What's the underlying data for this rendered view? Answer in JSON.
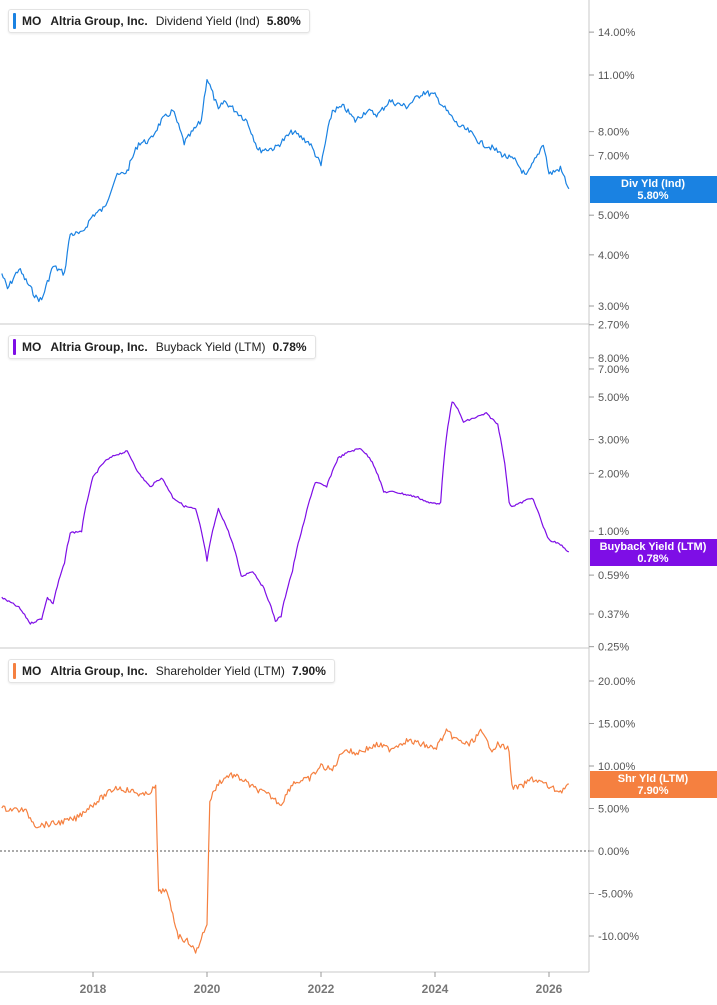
{
  "x_axis": {
    "ticks": [
      "2018",
      "2020",
      "2022",
      "2024",
      "2026"
    ]
  },
  "panels": [
    {
      "ticker": "MO",
      "company": "Altria Group, Inc.",
      "metric": "Dividend Yield (Ind)",
      "value": "5.80%",
      "tag_name": "Div Yld (Ind)",
      "tag_value": "5.80%",
      "color": "#1a82e2",
      "scale": "log",
      "y_ticks": [
        "14.00%",
        "11.00%",
        "8.00%",
        "7.00%",
        "5.00%",
        "4.00%",
        "3.00%",
        "2.70%"
      ]
    },
    {
      "ticker": "MO",
      "company": "Altria Group, Inc.",
      "metric": "Buyback Yield (LTM)",
      "value": "0.78%",
      "tag_name": "Buyback Yield (LTM)",
      "tag_value": "0.78%",
      "color": "#7e0ee6",
      "scale": "log",
      "y_ticks": [
        "8.00%",
        "7.00%",
        "5.00%",
        "3.00%",
        "2.00%",
        "1.00%",
        "0.59%",
        "0.37%",
        "0.25%"
      ]
    },
    {
      "ticker": "MO",
      "company": "Altria Group, Inc.",
      "metric": "Shareholder Yield (LTM)",
      "value": "7.90%",
      "tag_name": "Shr Yld (LTM)",
      "tag_value": "7.90%",
      "color": "#f58040",
      "scale": "linear",
      "y_ticks": [
        "20.00%",
        "15.00%",
        "10.00%",
        "5.00%",
        "0.00%",
        "-5.00%",
        "-10.00%"
      ]
    }
  ],
  "chart_data": [
    {
      "type": "line",
      "title": "MO Altria Group, Inc. Dividend Yield (Ind) 5.80%",
      "series": [
        {
          "name": "Dividend Yield (Ind)",
          "x": [
            2016.4,
            2016.5,
            2016.7,
            2016.8,
            2017.0,
            2017.1,
            2017.3,
            2017.5,
            2017.6,
            2017.8,
            2018.0,
            2018.2,
            2018.4,
            2018.6,
            2018.8,
            2019.0,
            2019.2,
            2019.4,
            2019.6,
            2019.9,
            2020.0,
            2020.2,
            2020.3,
            2020.5,
            2020.7,
            2020.9,
            2021.2,
            2021.5,
            2021.8,
            2022.0,
            2022.2,
            2022.4,
            2022.6,
            2022.8,
            2023.0,
            2023.2,
            2023.5,
            2023.8,
            2024.0,
            2024.2,
            2024.4,
            2024.6,
            2024.8,
            2025.0,
            2025.2,
            2025.4,
            2025.6,
            2025.8,
            2025.9,
            2026.0,
            2026.2,
            2026.35
          ],
          "values": [
            3.6,
            3.3,
            3.7,
            3.5,
            3.15,
            3.1,
            3.75,
            3.6,
            4.5,
            4.5,
            5.0,
            5.2,
            6.2,
            6.4,
            7.5,
            7.6,
            8.5,
            9.0,
            7.5,
            8.5,
            10.8,
            9.0,
            9.5,
            9.0,
            8.5,
            7.2,
            7.3,
            8.0,
            7.5,
            6.6,
            9.0,
            9.2,
            8.5,
            9.0,
            8.8,
            9.5,
            9.2,
            10.0,
            9.8,
            9.0,
            8.3,
            8.0,
            7.5,
            7.3,
            7.0,
            6.8,
            6.2,
            7.0,
            7.5,
            6.3,
            6.5,
            5.8
          ]
        }
      ]
    },
    {
      "type": "line",
      "title": "MO Altria Group, Inc. Buyback Yield (LTM) 0.78%",
      "series": [
        {
          "name": "Buyback Yield (LTM)",
          "x": [
            2016.4,
            2016.7,
            2016.9,
            2017.1,
            2017.2,
            2017.3,
            2017.5,
            2017.6,
            2017.8,
            2018.0,
            2018.2,
            2018.4,
            2018.6,
            2018.8,
            2019.0,
            2019.2,
            2019.4,
            2019.6,
            2019.8,
            2020.0,
            2020.2,
            2020.4,
            2020.6,
            2020.8,
            2021.0,
            2021.2,
            2021.3,
            2021.5,
            2021.7,
            2021.9,
            2022.1,
            2022.3,
            2022.5,
            2022.7,
            2022.9,
            2023.1,
            2023.3,
            2023.5,
            2023.7,
            2023.9,
            2024.1,
            2024.3,
            2024.35,
            2024.5,
            2024.7,
            2024.9,
            2025.1,
            2025.3,
            2025.35,
            2025.5,
            2025.7,
            2025.9,
            2026.0,
            2026.2,
            2026.35
          ],
          "values": [
            0.45,
            0.4,
            0.33,
            0.35,
            0.45,
            0.42,
            0.68,
            0.98,
            1.0,
            1.9,
            2.3,
            2.5,
            2.6,
            2.0,
            1.7,
            1.9,
            1.5,
            1.35,
            1.3,
            0.7,
            1.3,
            0.95,
            0.58,
            0.62,
            0.5,
            0.34,
            0.36,
            0.62,
            1.1,
            1.8,
            1.7,
            2.4,
            2.6,
            2.7,
            2.3,
            1.6,
            1.6,
            1.55,
            1.5,
            1.4,
            1.4,
            4.7,
            4.6,
            3.7,
            3.9,
            4.1,
            3.6,
            1.4,
            1.35,
            1.4,
            1.5,
            1.05,
            0.9,
            0.85,
            0.78
          ]
        }
      ]
    },
    {
      "type": "line",
      "title": "MO Altria Group, Inc. Shareholder Yield (LTM) 7.90%",
      "series": [
        {
          "name": "Shareholder Yield (LTM)",
          "x": [
            2016.4,
            2016.8,
            2017.0,
            2017.3,
            2017.5,
            2017.7,
            2017.9,
            2018.2,
            2018.4,
            2018.7,
            2018.9,
            2019.1,
            2019.15,
            2019.25,
            2019.3,
            2019.5,
            2019.7,
            2019.8,
            2020.0,
            2020.05,
            2020.2,
            2020.4,
            2020.6,
            2020.8,
            2021.1,
            2021.3,
            2021.5,
            2021.8,
            2022.0,
            2022.2,
            2022.4,
            2022.6,
            2022.8,
            2023.0,
            2023.2,
            2023.5,
            2023.8,
            2024.0,
            2024.2,
            2024.4,
            2024.6,
            2024.8,
            2025.0,
            2025.1,
            2025.3,
            2025.35,
            2025.5,
            2025.7,
            2025.9,
            2026.0,
            2026.2,
            2026.35
          ],
          "values": [
            5.0,
            4.8,
            3.0,
            3.2,
            3.5,
            3.8,
            5.0,
            6.5,
            7.5,
            7.0,
            6.5,
            7.5,
            -5.0,
            -4.5,
            -5.0,
            -10.0,
            -10.8,
            -12.0,
            -8.5,
            6.0,
            8.0,
            9.0,
            8.5,
            7.5,
            6.5,
            5.5,
            8.0,
            8.5,
            10.0,
            9.5,
            12.0,
            11.5,
            12.0,
            12.5,
            12.0,
            13.0,
            12.5,
            12.0,
            14.0,
            13.0,
            12.5,
            14.0,
            12.0,
            12.5,
            12.0,
            7.5,
            7.5,
            8.5,
            8.0,
            7.5,
            7.0,
            7.9
          ]
        }
      ]
    }
  ]
}
